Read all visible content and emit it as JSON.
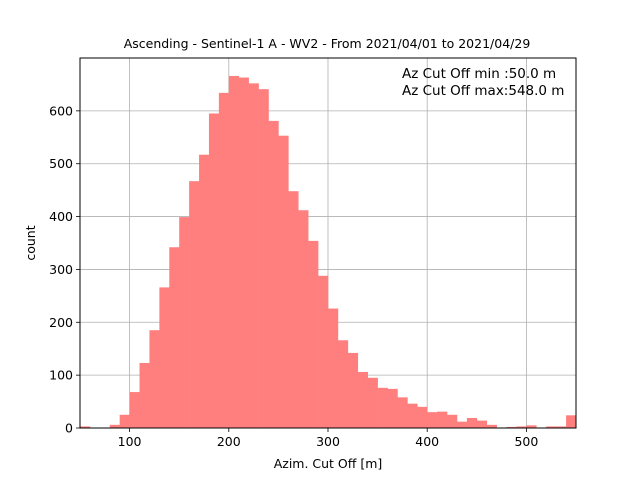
{
  "chart_data": {
    "type": "bar",
    "title": "Ascending - Sentinel-1 A - WV2 - From 2021/04/01 to 2021/04/29",
    "xlabel": "Azim. Cut Off [m]",
    "ylabel": "count",
    "xlim": [
      50,
      550
    ],
    "ylim": [
      0,
      700
    ],
    "xticks": [
      100,
      200,
      300,
      400,
      500
    ],
    "yticks": [
      0,
      100,
      200,
      300,
      400,
      500,
      600
    ],
    "grid": true,
    "bar_color": "#ff7f7f",
    "bin_width": 10,
    "bins_start": [
      50,
      60,
      70,
      80,
      90,
      100,
      110,
      120,
      130,
      140,
      150,
      160,
      170,
      180,
      190,
      200,
      210,
      220,
      230,
      240,
      250,
      260,
      270,
      280,
      290,
      300,
      310,
      320,
      330,
      340,
      350,
      360,
      370,
      380,
      390,
      400,
      410,
      420,
      430,
      440,
      450,
      460,
      470,
      480,
      490,
      500,
      510,
      520,
      530,
      540
    ],
    "values": [
      3,
      0,
      0,
      6,
      25,
      68,
      123,
      185,
      266,
      342,
      399,
      467,
      517,
      595,
      634,
      666,
      663,
      652,
      641,
      581,
      553,
      448,
      412,
      354,
      288,
      226,
      166,
      142,
      106,
      95,
      76,
      74,
      58,
      46,
      40,
      30,
      31,
      25,
      12,
      19,
      14,
      6,
      1,
      2,
      3,
      5,
      1,
      3,
      3,
      24
    ],
    "annotations": [
      "Az Cut Off min :50.0 m",
      "Az Cut Off max:548.0 m"
    ]
  }
}
